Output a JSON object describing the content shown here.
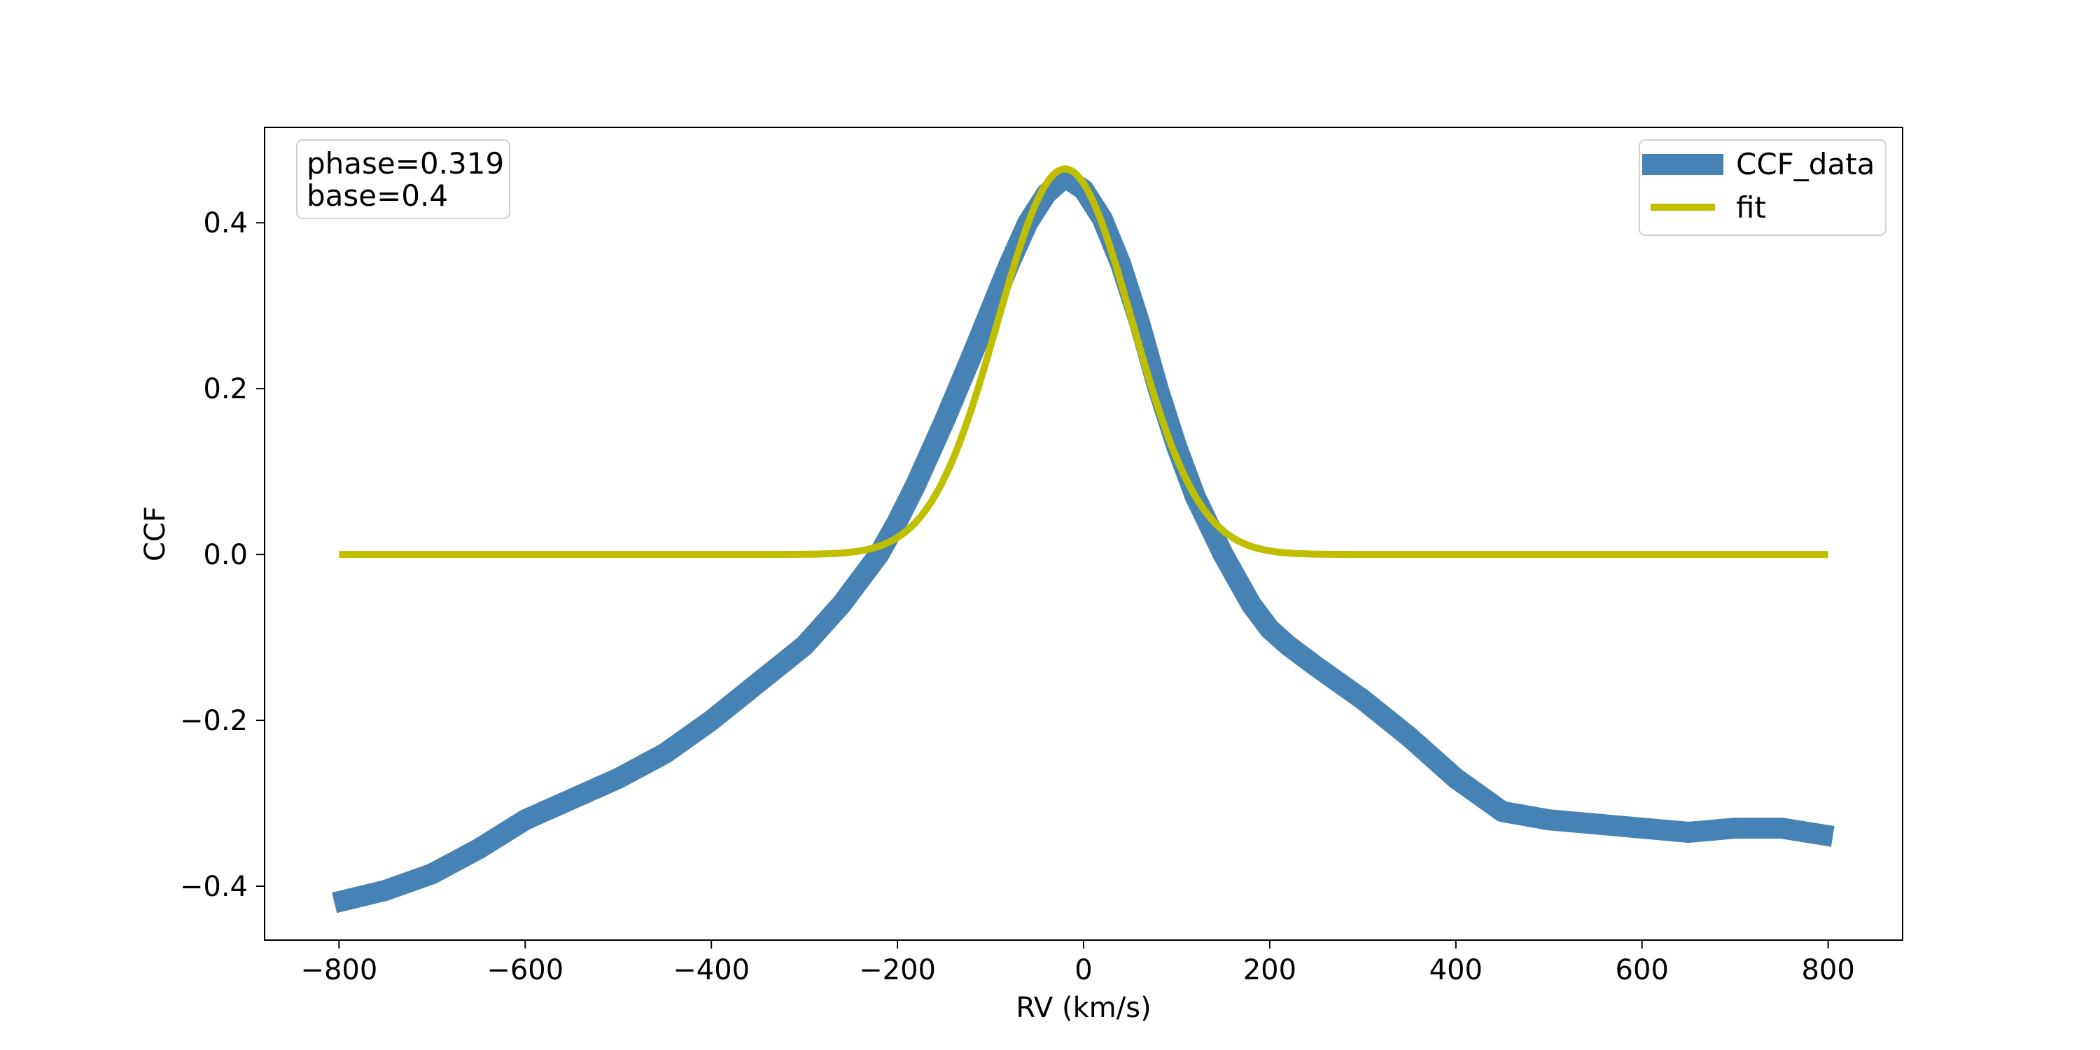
{
  "chart_data": {
    "type": "line",
    "xlabel": "RV (km/s)",
    "ylabel": "CCF",
    "xlim": [
      -880,
      880
    ],
    "ylim": [
      -0.465,
      0.515
    ],
    "xticks": [
      -800,
      -600,
      -400,
      -200,
      0,
      200,
      400,
      600,
      800
    ],
    "yticks": [
      -0.4,
      -0.2,
      0.0,
      0.2,
      0.4
    ],
    "xtick_labels": [
      "−800",
      "−600",
      "−400",
      "−200",
      "0",
      "200",
      "400",
      "600",
      "800"
    ],
    "ytick_labels": [
      "−0.4",
      "−0.2",
      "0.0",
      "0.2",
      "0.4"
    ],
    "grid": false,
    "legend_position": "upper right",
    "annotation": {
      "position": "upper left",
      "lines": [
        "phase=0.319",
        "base=0.4"
      ]
    },
    "series": [
      {
        "name": "CCF_data",
        "color": "#4682B4",
        "x": [
          -805,
          -750,
          -700,
          -650,
          -600,
          -550,
          -500,
          -450,
          -400,
          -350,
          -300,
          -260,
          -220,
          -200,
          -180,
          -150,
          -120,
          -100,
          -80,
          -60,
          -40,
          -20,
          0,
          20,
          40,
          60,
          80,
          100,
          120,
          150,
          180,
          200,
          220,
          250,
          300,
          350,
          400,
          450,
          500,
          550,
          600,
          650,
          700,
          750,
          805
        ],
        "y": [
          -0.42,
          -0.405,
          -0.385,
          -0.355,
          -0.32,
          -0.295,
          -0.27,
          -0.24,
          -0.2,
          -0.155,
          -0.11,
          -0.06,
          0.0,
          0.04,
          0.085,
          0.16,
          0.24,
          0.295,
          0.35,
          0.4,
          0.435,
          0.455,
          0.44,
          0.405,
          0.35,
          0.28,
          0.2,
          0.13,
          0.07,
          0.0,
          -0.06,
          -0.09,
          -0.11,
          -0.135,
          -0.175,
          -0.22,
          -0.27,
          -0.31,
          -0.32,
          -0.325,
          -0.33,
          -0.335,
          -0.33,
          -0.33,
          -0.34
        ]
      },
      {
        "name": "fit",
        "color": "#BFBF00",
        "model": "gaussian",
        "amplitude": 0.465,
        "center": -20,
        "sigma": 72,
        "x_range": [
          -800,
          800
        ]
      }
    ]
  }
}
